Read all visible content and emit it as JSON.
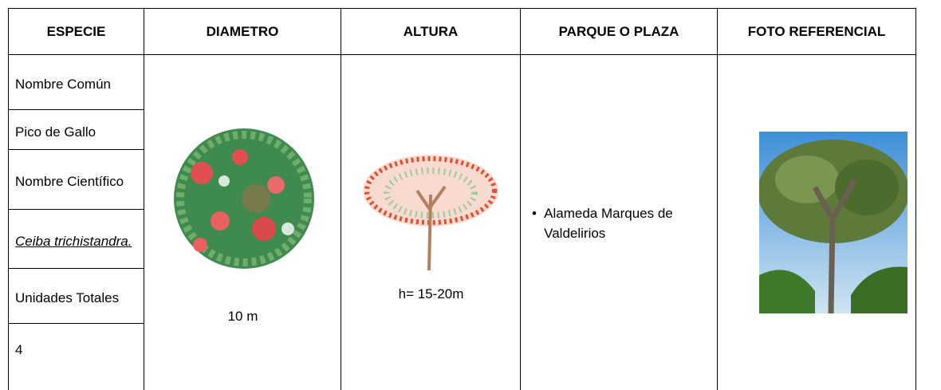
{
  "table": {
    "header": [
      "ESPECIE",
      "DIAMETRO",
      "ALTURA",
      "PARQUE O PLAZA",
      "FOTO REFERENCIAL"
    ],
    "especie": [
      "Nombre Común",
      "Pico de Gallo",
      "Nombre Científico",
      "Ceiba trichistandra.",
      "Unidades Totales",
      "4"
    ],
    "diametro": "10 m",
    "altura": "h= 15-20m",
    "parque": [
      "Alameda Marques de Valdelirios"
    ]
  }
}
